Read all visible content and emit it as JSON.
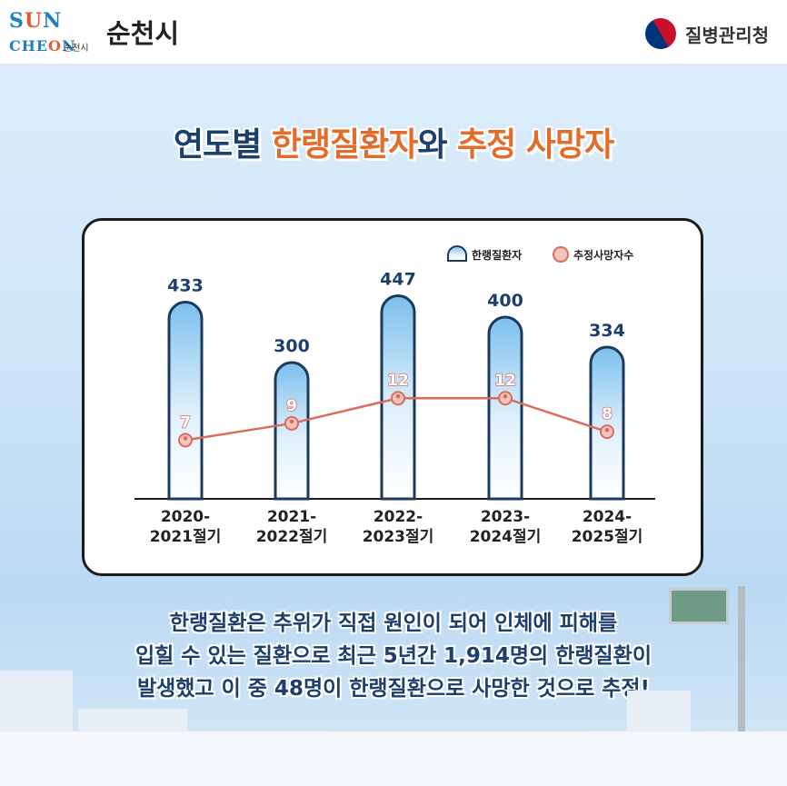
{
  "header": {
    "logo_text": "SUNCHEON",
    "logo_sub": "순천시",
    "city_name": "순천시",
    "agency_name": "질병관리청"
  },
  "title": {
    "part1": "연도별 ",
    "part2": "한랭질환자",
    "part3": "와 ",
    "part4": "추정 사망자"
  },
  "legend": {
    "patients": "한랭질환자",
    "deaths": "추정사망자수"
  },
  "colors": {
    "navy": "#1d3f6e",
    "orange": "#e26d2a",
    "line": "#d96b5f",
    "bar_top": "#8fc9ef"
  },
  "chart_data": {
    "type": "bar",
    "categories": [
      "2020-\n2021절기",
      "2021-\n2022절기",
      "2022-\n2023절기",
      "2023-\n2024절기",
      "2024-\n2025절기"
    ],
    "series": [
      {
        "name": "한랭질환자",
        "type": "bar",
        "values": [
          433,
          300,
          447,
          400,
          334
        ]
      },
      {
        "name": "추정사망자수",
        "type": "line",
        "values": [
          7,
          9,
          12,
          12,
          8
        ]
      }
    ],
    "title": "연도별 한랭질환자와 추정 사망자",
    "xlabel": "",
    "ylabel": "",
    "ylim": [
      0,
      480
    ],
    "y2lim": [
      0,
      26
    ],
    "legend_position": "top-right"
  },
  "description": {
    "line1": "한랭질환은 추위가 직접 원인이 되어 인체에 피해를",
    "line2": "입힐 수 있는 질환으로 최근 5년간 1,914명의 한랭질환이",
    "line3": "발생했고 이 중 48명이 한랭질환으로 사망한 것으로 추정!"
  }
}
